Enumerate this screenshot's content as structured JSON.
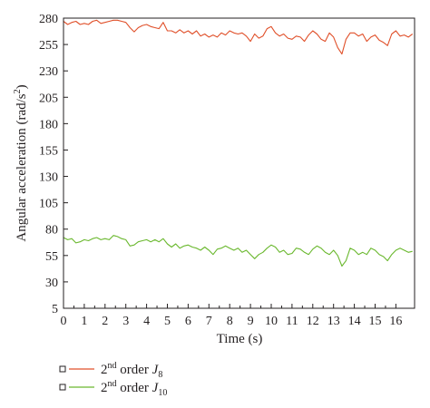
{
  "chart_data": {
    "type": "line",
    "title": "",
    "xlabel": "Time (s)",
    "ylabel_main": "Angular acceleration (rad/s",
    "ylabel_sup": "2",
    "ylabel_close": ")",
    "xlim": [
      0,
      16.9
    ],
    "ylim": [
      5,
      280
    ],
    "xticks": [
      0,
      1,
      2,
      3,
      4,
      5,
      6,
      7,
      8,
      9,
      10,
      11,
      12,
      13,
      14,
      15,
      16
    ],
    "yticks": [
      5,
      30,
      55,
      80,
      105,
      130,
      155,
      180,
      205,
      230,
      255,
      280
    ],
    "grid": false,
    "legend_position": "bottom-left-below-plot",
    "series": [
      {
        "legend_prefix": "2",
        "legend_sup": "nd",
        "legend_mid": " order ",
        "legend_var": "J",
        "legend_sub": "8",
        "color": "#e0502a",
        "x": [
          0,
          0.2,
          0.4,
          0.6,
          0.8,
          1.0,
          1.2,
          1.4,
          1.6,
          1.8,
          2.0,
          2.2,
          2.4,
          2.6,
          2.8,
          3.0,
          3.2,
          3.4,
          3.6,
          3.8,
          4.0,
          4.2,
          4.4,
          4.6,
          4.8,
          5.0,
          5.2,
          5.4,
          5.6,
          5.8,
          6.0,
          6.2,
          6.4,
          6.6,
          6.8,
          7.0,
          7.2,
          7.4,
          7.6,
          7.8,
          8.0,
          8.2,
          8.4,
          8.6,
          8.8,
          9.0,
          9.2,
          9.4,
          9.6,
          9.8,
          10.0,
          10.2,
          10.4,
          10.6,
          10.8,
          11.0,
          11.2,
          11.4,
          11.6,
          11.8,
          12.0,
          12.2,
          12.4,
          12.6,
          12.8,
          13.0,
          13.2,
          13.4,
          13.6,
          13.8,
          14.0,
          14.2,
          14.4,
          14.6,
          14.8,
          15.0,
          15.2,
          15.4,
          15.6,
          15.8,
          16.0,
          16.2,
          16.4,
          16.6,
          16.8
        ],
        "y": [
          277,
          274,
          276,
          277,
          274,
          275,
          274,
          277,
          278,
          275,
          276,
          277,
          278,
          278,
          277,
          276,
          271,
          267,
          271,
          273,
          274,
          272,
          271,
          270,
          276,
          268,
          268,
          266,
          269,
          266,
          268,
          265,
          268,
          263,
          265,
          262,
          264,
          262,
          266,
          264,
          268,
          266,
          265,
          266,
          263,
          258,
          265,
          261,
          263,
          270,
          272,
          266,
          263,
          265,
          261,
          260,
          263,
          262,
          258,
          264,
          268,
          265,
          260,
          258,
          266,
          262,
          252,
          246,
          260,
          266,
          266,
          263,
          265,
          258,
          262,
          264,
          259,
          257,
          254,
          265,
          268,
          263,
          264,
          262,
          265
        ]
      },
      {
        "legend_prefix": "2",
        "legend_sup": "nd",
        "legend_mid": " order ",
        "legend_var": "J",
        "legend_sub": "10",
        "color": "#6ab82e",
        "x": [
          0,
          0.2,
          0.4,
          0.6,
          0.8,
          1.0,
          1.2,
          1.4,
          1.6,
          1.8,
          2.0,
          2.2,
          2.4,
          2.6,
          2.8,
          3.0,
          3.2,
          3.4,
          3.6,
          3.8,
          4.0,
          4.2,
          4.4,
          4.6,
          4.8,
          5.0,
          5.2,
          5.4,
          5.6,
          5.8,
          6.0,
          6.2,
          6.4,
          6.6,
          6.8,
          7.0,
          7.2,
          7.4,
          7.6,
          7.8,
          8.0,
          8.2,
          8.4,
          8.6,
          8.8,
          9.0,
          9.2,
          9.4,
          9.6,
          9.8,
          10.0,
          10.2,
          10.4,
          10.6,
          10.8,
          11.0,
          11.2,
          11.4,
          11.6,
          11.8,
          12.0,
          12.2,
          12.4,
          12.6,
          12.8,
          13.0,
          13.2,
          13.4,
          13.6,
          13.8,
          14.0,
          14.2,
          14.4,
          14.6,
          14.8,
          15.0,
          15.2,
          15.4,
          15.6,
          15.8,
          16.0,
          16.2,
          16.4,
          16.6,
          16.8
        ],
        "y": [
          72,
          70,
          71,
          67,
          68,
          70,
          69,
          71,
          72,
          70,
          71,
          70,
          74,
          73,
          71,
          70,
          64,
          65,
          68,
          69,
          70,
          68,
          70,
          68,
          71,
          66,
          63,
          66,
          62,
          64,
          65,
          63,
          62,
          60,
          63,
          60,
          56,
          61,
          62,
          64,
          62,
          60,
          62,
          58,
          60,
          56,
          52,
          56,
          58,
          62,
          65,
          63,
          58,
          60,
          56,
          57,
          62,
          61,
          58,
          56,
          61,
          64,
          62,
          58,
          56,
          60,
          55,
          45,
          50,
          62,
          60,
          56,
          58,
          56,
          62,
          60,
          56,
          54,
          50,
          56,
          60,
          62,
          60,
          58,
          59
        ]
      }
    ]
  }
}
